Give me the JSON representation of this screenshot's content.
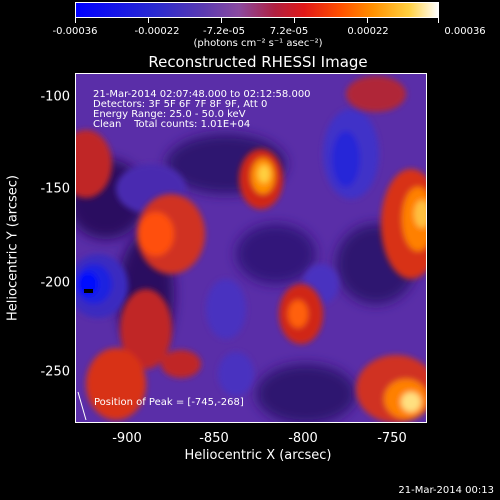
{
  "colorbar": {
    "ticks": [
      "-0.00036",
      "-0.00022",
      "-7.2e-05",
      "7.2e-05",
      "0.00022",
      "0.00036"
    ],
    "units": "(photons cm⁻² s⁻¹ asec⁻²)"
  },
  "plot": {
    "title": "Reconstructed RHESSI Image",
    "info_lines": [
      "21-Mar-2014 02:07:48.000 to 02:12:58.000",
      "Detectors: 3F 5F 6F 7F 8F 9F, Att 0",
      "Energy Range: 25.0 - 50.0 keV",
      "Clean    Total counts: 1.01E+04"
    ],
    "peak_text": "Position of Peak = [-745,-268]",
    "xlabel": "Heliocentric X (arcsec)",
    "ylabel": "Heliocentric Y (arcsec)",
    "xticks": [
      "-900",
      "-850",
      "-800",
      "-750"
    ],
    "yticks": [
      "-100",
      "-150",
      "-200",
      "-250"
    ]
  },
  "timestamp": "21-Mar-2014 00:13"
}
